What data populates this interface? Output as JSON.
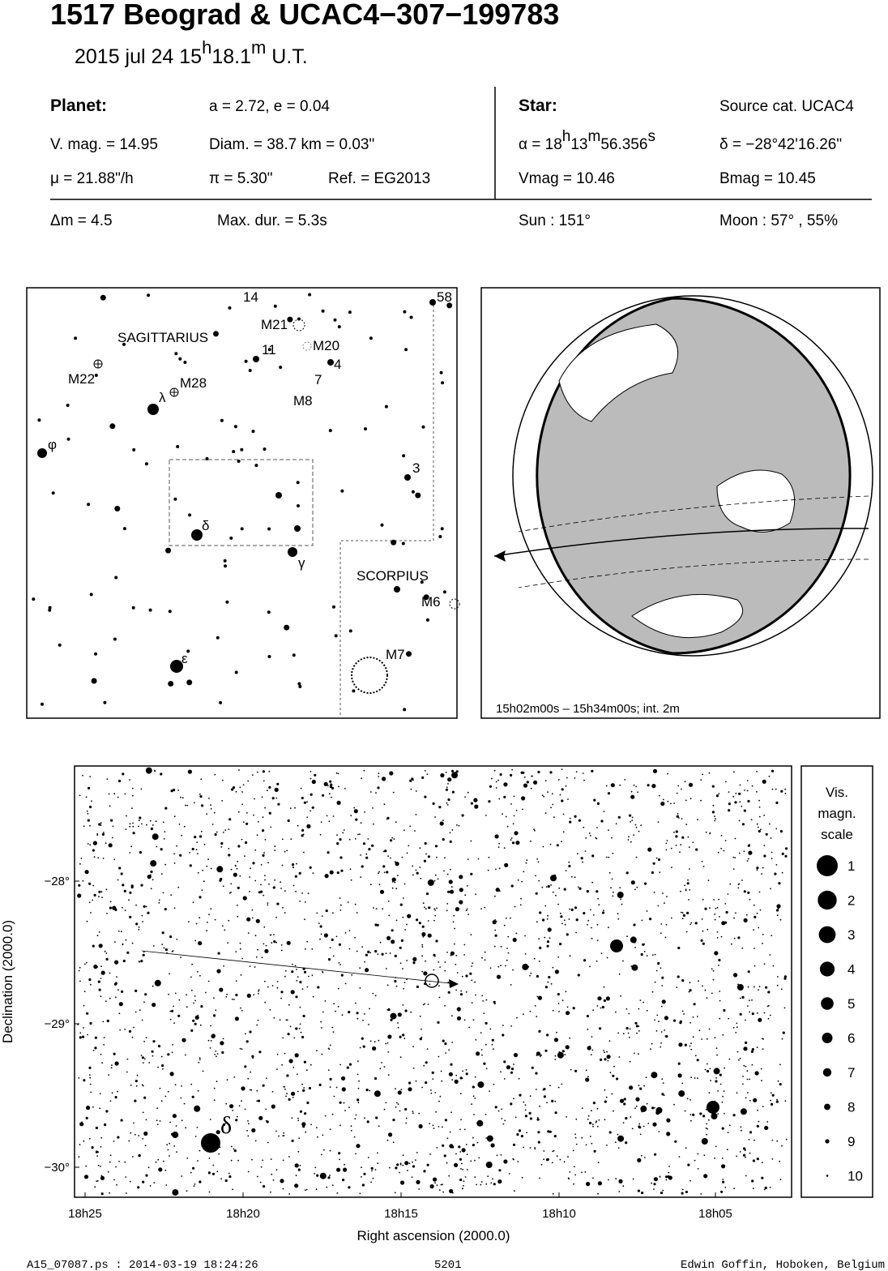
{
  "header": {
    "title": "1517 Beograd  &  UCAC4−307−199783",
    "date": [
      "2015 jul 24  15",
      "h",
      "18.1",
      "m",
      " U.T."
    ]
  },
  "info": {
    "planet": {
      "label": "Planet:",
      "orbit": "a = 2.72, e = 0.04",
      "vmag": "V. mag. = 14.95",
      "diam": "Diam. = 38.7 km = 0.03\"",
      "motion": "μ =  21.88\"/h",
      "parallax": "π =  5.30\"",
      "ref": "Ref. = EG2013"
    },
    "star": {
      "label": "Star:",
      "source": "Source cat.  UCAC4",
      "alpha": [
        "α = 18",
        "h",
        "13",
        "m",
        "56.356",
        "s"
      ],
      "delta": "δ = −28°42'16.26\"",
      "vmag": "Vmag = 10.46",
      "bmag": "Bmag = 10.45"
    },
    "event": {
      "dm": "Δm = 4.5",
      "duration": "Max. dur. = 5.3s",
      "sun": "Sun : 151°",
      "moon": "Moon :  57° , 55%"
    }
  },
  "finder": {
    "labels": [
      "14",
      "58",
      "M21",
      "M20",
      "SAGITTARIUS",
      "11",
      "4",
      "7",
      "M8",
      "M22",
      "M28",
      "λ",
      "φ",
      "3",
      "δ",
      "γ",
      "SCORPIUS",
      "M6",
      "M7",
      "ε"
    ]
  },
  "globe": {
    "caption": "15h02m00s – 15h34m00s; int.  2m"
  },
  "starchart": {
    "ylabel": "Declination (2000.0)",
    "xlabel": "Right ascension (2000.0)",
    "yticks": [
      "−28°",
      "−29°",
      "−30°"
    ],
    "xticks": [
      "18h25",
      "18h20",
      "18h15",
      "18h10",
      "18h05"
    ],
    "star_label": "δ",
    "legend": {
      "title": [
        "Vis.",
        "magn.",
        "scale"
      ],
      "magnitudes": [
        1,
        2,
        3,
        4,
        5,
        6,
        7,
        8,
        9,
        10
      ]
    }
  },
  "footer": {
    "file": "A15_07087.ps : 2014-03-19 18:24:26",
    "number": "5201",
    "author": "Edwin Goffin, Hoboken, Belgium"
  }
}
